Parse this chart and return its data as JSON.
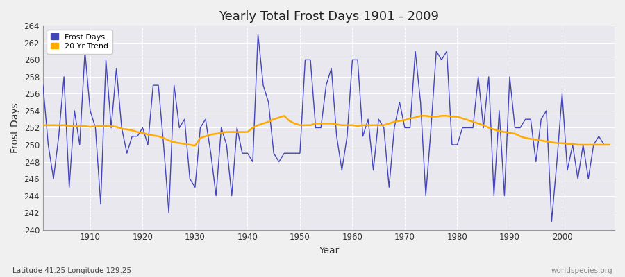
{
  "title": "Yearly Total Frost Days 1901 - 2009",
  "xlabel": "Year",
  "ylabel": "Frost Days",
  "subtitle": "Latitude 41.25 Longitude 129.25",
  "watermark": "worldspecies.org",
  "ylim": [
    240,
    264
  ],
  "yticks": [
    240,
    242,
    244,
    246,
    248,
    250,
    252,
    254,
    256,
    258,
    260,
    262,
    264
  ],
  "bg_color": "#e8e8e8",
  "plot_bg_color": "#e8e8ee",
  "line_color_blue": "#4444bb",
  "line_color_orange": "#ffaa00",
  "frost_days": {
    "1901": 257,
    "1902": 250,
    "1903": 246,
    "1904": 251,
    "1905": 258,
    "1906": 245,
    "1907": 254,
    "1908": 250,
    "1909": 261,
    "1910": 254,
    "1911": 252,
    "1912": 243,
    "1913": 260,
    "1914": 252,
    "1915": 259,
    "1916": 252,
    "1917": 249,
    "1918": 251,
    "1919": 251,
    "1920": 252,
    "1921": 250,
    "1922": 257,
    "1923": 257,
    "1924": 250,
    "1925": 242,
    "1926": 257,
    "1927": 252,
    "1928": 253,
    "1929": 246,
    "1930": 245,
    "1931": 252,
    "1932": 253,
    "1933": 249,
    "1934": 244,
    "1935": 252,
    "1936": 250,
    "1937": 244,
    "1938": 252,
    "1939": 249,
    "1940": 249,
    "1941": 248,
    "1942": 263,
    "1943": 257,
    "1944": 255,
    "1945": 249,
    "1946": 248,
    "1947": 249,
    "1948": 249,
    "1949": 249,
    "1950": 249,
    "1951": 260,
    "1952": 260,
    "1953": 252,
    "1954": 252,
    "1955": 257,
    "1956": 259,
    "1957": 251,
    "1958": 247,
    "1959": 251,
    "1960": 260,
    "1961": 260,
    "1962": 251,
    "1963": 253,
    "1964": 247,
    "1965": 253,
    "1966": 252,
    "1967": 245,
    "1968": 252,
    "1969": 255,
    "1970": 252,
    "1971": 252,
    "1972": 261,
    "1973": 255,
    "1974": 244,
    "1975": 252,
    "1976": 261,
    "1977": 260,
    "1978": 261,
    "1979": 250,
    "1980": 250,
    "1981": 252,
    "1982": 252,
    "1983": 252,
    "1984": 258,
    "1985": 252,
    "1986": 258,
    "1987": 244,
    "1988": 254,
    "1989": 244,
    "1990": 258,
    "1991": 252,
    "1992": 252,
    "1993": 253,
    "1994": 253,
    "1995": 248,
    "1996": 253,
    "1997": 254,
    "1998": 241,
    "1999": 248,
    "2000": 256,
    "2001": 247,
    "2002": 250,
    "2003": 246,
    "2004": 250,
    "2005": 246,
    "2006": 250,
    "2007": 251,
    "2008": 250,
    "2009": 250
  },
  "trend_20yr": {
    "1901": 252.3,
    "1902": 252.3,
    "1903": 252.3,
    "1904": 252.3,
    "1905": 252.3,
    "1906": 252.2,
    "1907": 252.2,
    "1908": 252.2,
    "1909": 252.2,
    "1910": 252.1,
    "1911": 252.2,
    "1912": 252.2,
    "1913": 252.2,
    "1914": 252.2,
    "1915": 252.1,
    "1916": 251.9,
    "1917": 251.8,
    "1918": 251.7,
    "1919": 251.5,
    "1920": 251.4,
    "1921": 251.2,
    "1922": 251.1,
    "1923": 251.0,
    "1924": 250.8,
    "1925": 250.5,
    "1926": 250.3,
    "1927": 250.2,
    "1928": 250.1,
    "1929": 250.0,
    "1930": 249.9,
    "1931": 250.8,
    "1932": 251.0,
    "1933": 251.2,
    "1934": 251.3,
    "1935": 251.4,
    "1936": 251.5,
    "1937": 251.5,
    "1938": 251.5,
    "1939": 251.5,
    "1940": 251.5,
    "1941": 252.0,
    "1942": 252.3,
    "1943": 252.5,
    "1944": 252.7,
    "1945": 253.0,
    "1946": 253.2,
    "1947": 253.4,
    "1948": 252.8,
    "1949": 252.5,
    "1950": 252.3,
    "1951": 252.3,
    "1952": 252.3,
    "1953": 252.5,
    "1954": 252.5,
    "1955": 252.5,
    "1956": 252.5,
    "1957": 252.4,
    "1958": 252.3,
    "1959": 252.3,
    "1960": 252.3,
    "1961": 252.2,
    "1962": 252.3,
    "1963": 252.3,
    "1964": 252.3,
    "1965": 252.3,
    "1966": 252.3,
    "1967": 252.5,
    "1968": 252.7,
    "1969": 252.8,
    "1970": 252.9,
    "1971": 253.1,
    "1972": 253.2,
    "1973": 253.4,
    "1974": 253.4,
    "1975": 253.3,
    "1976": 253.3,
    "1977": 253.4,
    "1978": 253.4,
    "1979": 253.3,
    "1980": 253.3,
    "1981": 253.1,
    "1982": 252.9,
    "1983": 252.7,
    "1984": 252.5,
    "1985": 252.3,
    "1986": 252.0,
    "1987": 251.8,
    "1988": 251.6,
    "1989": 251.5,
    "1990": 251.4,
    "1991": 251.3,
    "1992": 251.0,
    "1993": 250.8,
    "1994": 250.7,
    "1995": 250.6,
    "1996": 250.5,
    "1997": 250.4,
    "1998": 250.3,
    "1999": 250.2,
    "2000": 250.2,
    "2001": 250.1,
    "2002": 250.1,
    "2003": 250.0,
    "2004": 250.0,
    "2005": 250.0,
    "2006": 250.0,
    "2007": 250.0,
    "2008": 250.0,
    "2009": 250.0
  }
}
